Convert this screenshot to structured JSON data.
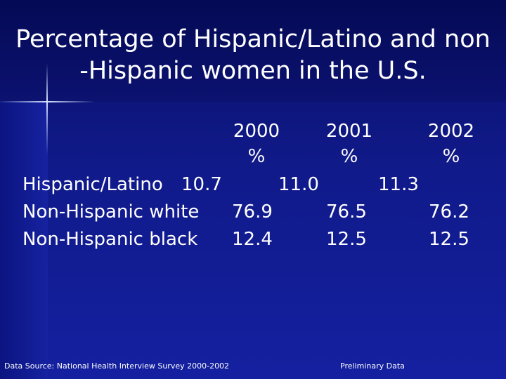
{
  "slide": {
    "title_line1": "Percentage of Hispanic/Latino and non",
    "title_line2": "-Hispanic women in the U.S."
  },
  "table": {
    "columns": [
      {
        "year": "2000",
        "unit": "%"
      },
      {
        "year": "2001",
        "unit": "%"
      },
      {
        "year": "2002",
        "unit": "%"
      }
    ],
    "rows": [
      {
        "label": "Hispanic/Latino",
        "values": [
          "10.7",
          "11.0",
          "11.3"
        ]
      },
      {
        "label": "Non-Hispanic white",
        "values": [
          "76.9",
          "76.5",
          "76.2"
        ]
      },
      {
        "label": "Non-Hispanic black",
        "values": [
          "12.4",
          "12.5",
          "12.5"
        ]
      }
    ]
  },
  "footer": {
    "source": "Data Source:  National Health Interview Survey 2000-2002",
    "note": "Preliminary Data"
  }
}
